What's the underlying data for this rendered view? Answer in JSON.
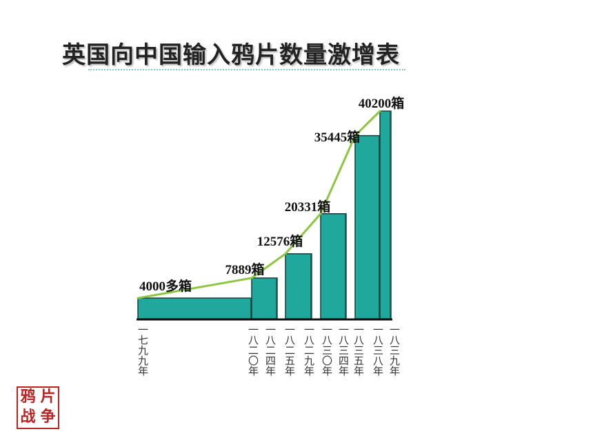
{
  "chart_data": {
    "type": "bar",
    "title": "英国向中国输入鸦片数量激增表",
    "categories": [
      "一七九九年",
      "一八二〇年",
      "一八二四年",
      "一八二五年",
      "一八二九年",
      "一八三〇年",
      "一八三四年",
      "一八三五年",
      "一八三八年",
      "一八三九年"
    ],
    "values": [
      4000,
      7889,
      null,
      12576,
      null,
      20331,
      null,
      35445,
      40200,
      null
    ],
    "value_labels": [
      "4000多箱",
      "7889箱",
      null,
      "12576箱",
      null,
      "20331箱",
      null,
      "35445箱",
      "40200箱",
      null
    ],
    "color": "#1fa89c",
    "line_color": "#8cc63f"
  },
  "seal": [
    "鸦",
    "片",
    "战",
    "争"
  ]
}
